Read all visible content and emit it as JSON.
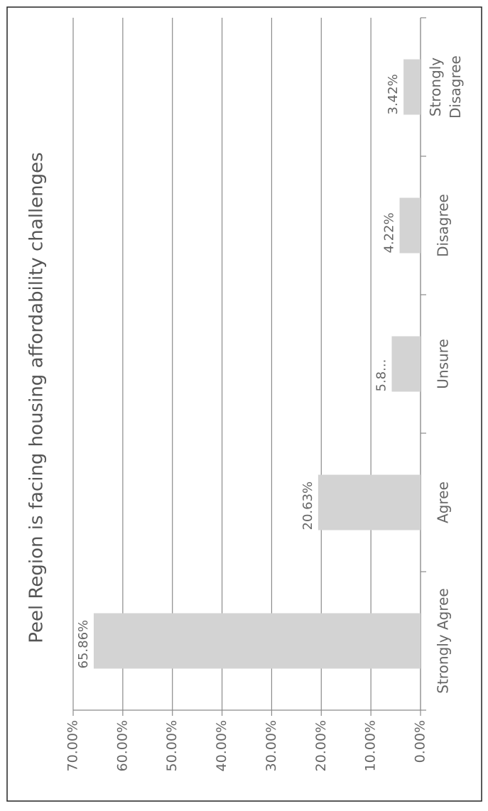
{
  "chart_data": {
    "type": "bar",
    "title": "Peel Region is facing housing affordability challenges",
    "categories": [
      "Strongly Agree",
      "Agree",
      "Unsure",
      "Disagree",
      "Strongly Disagree"
    ],
    "values": [
      65.86,
      20.63,
      5.8,
      4.22,
      3.42
    ],
    "value_labels": [
      "65.86%",
      "20.63%",
      "5.8...",
      "4.22%",
      "3.42%"
    ],
    "color": "#d3d3d3",
    "ylim": [
      0,
      70
    ],
    "yticks": [
      {
        "value": 0,
        "label": "0.00%"
      },
      {
        "value": 10,
        "label": "10.00%"
      },
      {
        "value": 20,
        "label": "20.00%"
      },
      {
        "value": 30,
        "label": "30.00%"
      },
      {
        "value": 40,
        "label": "40.00%"
      },
      {
        "value": 50,
        "label": "50.00%"
      },
      {
        "value": 60,
        "label": "60.00%"
      },
      {
        "value": 70,
        "label": "70.00%"
      }
    ],
    "grid": true
  }
}
